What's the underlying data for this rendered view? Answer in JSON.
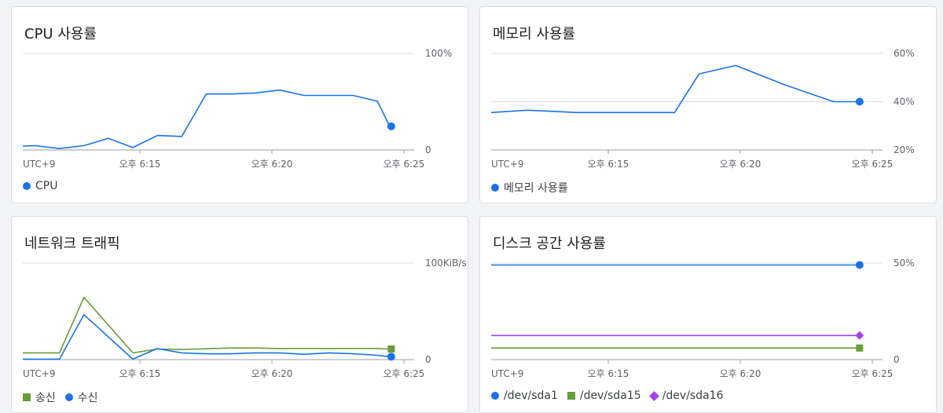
{
  "cards": [
    {
      "title": "CPU 사용률",
      "legend": [
        {
          "label": "CPU",
          "marker": "dot",
          "color": "#1a73e8"
        }
      ]
    },
    {
      "title": "메모리 사용률",
      "legend": [
        {
          "label": "메모리 사용률",
          "marker": "dot",
          "color": "#1a73e8"
        }
      ]
    },
    {
      "title": "네트워크 트래픽",
      "legend": [
        {
          "label": "송신",
          "marker": "square",
          "color": "#6a9c3a"
        },
        {
          "label": "수신",
          "marker": "dot",
          "color": "#1a73e8"
        }
      ]
    },
    {
      "title": "디스크 공간 사용률",
      "legend": [
        {
          "label": "/dev/sda1",
          "marker": "dot",
          "color": "#1a73e8"
        },
        {
          "label": "/dev/sda15",
          "marker": "square",
          "color": "#6a9c3a"
        },
        {
          "label": "/dev/sda16",
          "marker": "diamond",
          "color": "#a142f4"
        }
      ]
    }
  ],
  "chart_data": [
    {
      "type": "line",
      "title": "CPU 사용률",
      "x_tick_labels": [
        "UTC+9",
        "오후 6:15",
        "오후 6:20",
        "오후 6:25"
      ],
      "x_range": [
        "18:10",
        "18:26"
      ],
      "y_ticks": [
        {
          "value": 0,
          "label": "0"
        },
        {
          "value": 100,
          "label": "100%"
        }
      ],
      "ylim": [
        0,
        100
      ],
      "series": [
        {
          "name": "CPU",
          "color": "#1a73e8",
          "end_marker": "dot",
          "x": [
            "18:10:00",
            "18:10:30",
            "18:11:30",
            "18:12:30",
            "18:13:30",
            "18:14:30",
            "18:15:30",
            "18:16:30",
            "18:17:30",
            "18:18:30",
            "18:19:30",
            "18:20:30",
            "18:21:30",
            "18:22:30",
            "18:23:30",
            "18:24:30",
            "18:25:00"
          ],
          "values": [
            4,
            4.5,
            1.5,
            4.5,
            12,
            2.5,
            15,
            14,
            58,
            58,
            59,
            62,
            56.5,
            56.5,
            56.5,
            50.5,
            24.5
          ]
        }
      ]
    },
    {
      "type": "line",
      "title": "메모리 사용률",
      "x_tick_labels": [
        "UTC+9",
        "오후 6:15",
        "오후 6:20",
        "오후 6:25"
      ],
      "x_range": [
        "18:10",
        "18:26"
      ],
      "y_ticks": [
        {
          "value": 20,
          "label": "20%"
        },
        {
          "value": 40,
          "label": "40%"
        },
        {
          "value": 60,
          "label": "60%"
        }
      ],
      "ylim": [
        20,
        60
      ],
      "series": [
        {
          "name": "메모리 사용률",
          "color": "#1a73e8",
          "end_marker": "dot",
          "x": [
            "18:10:00",
            "18:11:30",
            "18:13:30",
            "18:15:30",
            "18:17:30",
            "18:18:30",
            "18:20:00",
            "18:22:00",
            "18:24:00",
            "18:25:00"
          ],
          "values": [
            35.5,
            36.5,
            35.5,
            35.5,
            35.5,
            51.5,
            55,
            47,
            40,
            40
          ]
        }
      ]
    },
    {
      "type": "line",
      "title": "네트워크 트래픽",
      "x_tick_labels": [
        "UTC+9",
        "오후 6:15",
        "오후 6:20",
        "오후 6:25"
      ],
      "x_range": [
        "18:10",
        "18:26"
      ],
      "y_ticks": [
        {
          "value": 0,
          "label": "0"
        },
        {
          "value": 100,
          "label": "100KiB/s"
        }
      ],
      "ylim": [
        0,
        100
      ],
      "series": [
        {
          "name": "송신",
          "color": "#6a9c3a",
          "end_marker": "square",
          "x": [
            "18:10:00",
            "18:11:30",
            "18:12:30",
            "18:14:30",
            "18:15:30",
            "18:16:30",
            "18:18:30",
            "18:19:30",
            "18:20:30",
            "18:22:30",
            "18:24:30",
            "18:25:00"
          ],
          "values": [
            7,
            7,
            64.5,
            7,
            11,
            10.5,
            12,
            12,
            11.5,
            11.5,
            11.5,
            11
          ]
        },
        {
          "name": "수신",
          "color": "#1a73e8",
          "end_marker": "dot",
          "x": [
            "18:10:00",
            "18:11:30",
            "18:12:30",
            "18:14:30",
            "18:15:30",
            "18:16:30",
            "18:17:30",
            "18:18:30",
            "18:19:30",
            "18:20:30",
            "18:21:30",
            "18:22:30",
            "18:23:30",
            "18:24:30",
            "18:25:00"
          ],
          "values": [
            0.5,
            0.5,
            46.5,
            0.5,
            11.5,
            7,
            6,
            6,
            7,
            7,
            5.5,
            7,
            6,
            4.5,
            3
          ]
        }
      ]
    },
    {
      "type": "line",
      "title": "디스크 공간 사용률",
      "x_tick_labels": [
        "UTC+9",
        "오후 6:15",
        "오후 6:20",
        "오후 6:25"
      ],
      "x_range": [
        "18:10",
        "18:26"
      ],
      "y_ticks": [
        {
          "value": 0,
          "label": "0"
        },
        {
          "value": 50,
          "label": "50%"
        }
      ],
      "ylim": [
        0,
        50
      ],
      "series": [
        {
          "name": "/dev/sda1",
          "color": "#1a73e8",
          "end_marker": "dot",
          "x": [
            "18:10:00",
            "18:25:00"
          ],
          "values": [
            49,
            49
          ]
        },
        {
          "name": "/dev/sda15",
          "color": "#6a9c3a",
          "end_marker": "square",
          "x": [
            "18:10:00",
            "18:25:00"
          ],
          "values": [
            6,
            6
          ]
        },
        {
          "name": "/dev/sda16",
          "color": "#a142f4",
          "end_marker": "diamond",
          "x": [
            "18:10:00",
            "18:25:00"
          ],
          "values": [
            12.5,
            12.5
          ]
        }
      ]
    }
  ]
}
